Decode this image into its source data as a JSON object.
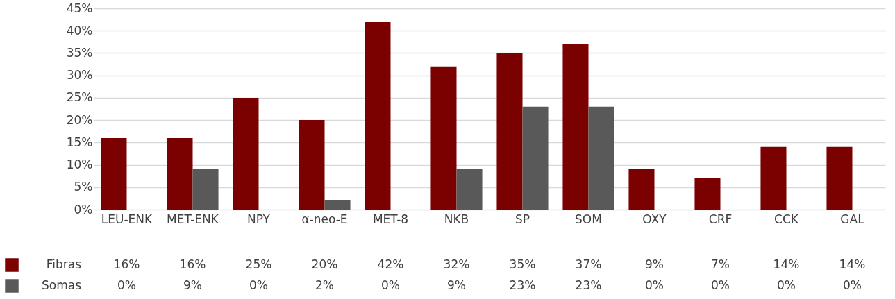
{
  "chart_data": {
    "type": "bar",
    "categories": [
      "LEU-ENK",
      "MET-ENK",
      "NPY",
      "α-neo-E",
      "MET-8",
      "NKB",
      "SP",
      "SOM",
      "OXY",
      "CRF",
      "CCK",
      "GAL"
    ],
    "series": [
      {
        "name": "Fibras",
        "color": "#7b0000",
        "values": [
          16,
          16,
          25,
          20,
          42,
          32,
          35,
          37,
          9,
          7,
          14,
          14
        ]
      },
      {
        "name": "Somas",
        "color": "#595959",
        "values": [
          0,
          9,
          0,
          2,
          0,
          9,
          23,
          23,
          0,
          0,
          0,
          0
        ]
      }
    ],
    "ylim": [
      0,
      45
    ],
    "yticks": [
      {
        "value": 0,
        "label": "0%"
      },
      {
        "value": 5,
        "label": "5%"
      },
      {
        "value": 10,
        "label": "10%"
      },
      {
        "value": 15,
        "label": "15%"
      },
      {
        "value": 20,
        "label": "20%"
      },
      {
        "value": 25,
        "label": "25%"
      },
      {
        "value": 30,
        "label": "30%"
      },
      {
        "value": 35,
        "label": "35%"
      },
      {
        "value": 40,
        "label": "40%"
      },
      {
        "value": 45,
        "label": "45%"
      }
    ],
    "value_labels": [
      [
        "16%",
        "16%",
        "25%",
        "20%",
        "42%",
        "32%",
        "35%",
        "37%",
        "9%",
        "7%",
        "14%",
        "14%"
      ],
      [
        "0%",
        "9%",
        "0%",
        "2%",
        "0%",
        "9%",
        "23%",
        "23%",
        "0%",
        "0%",
        "0%",
        "0%"
      ]
    ],
    "grid": "y",
    "legend": "bottom"
  }
}
